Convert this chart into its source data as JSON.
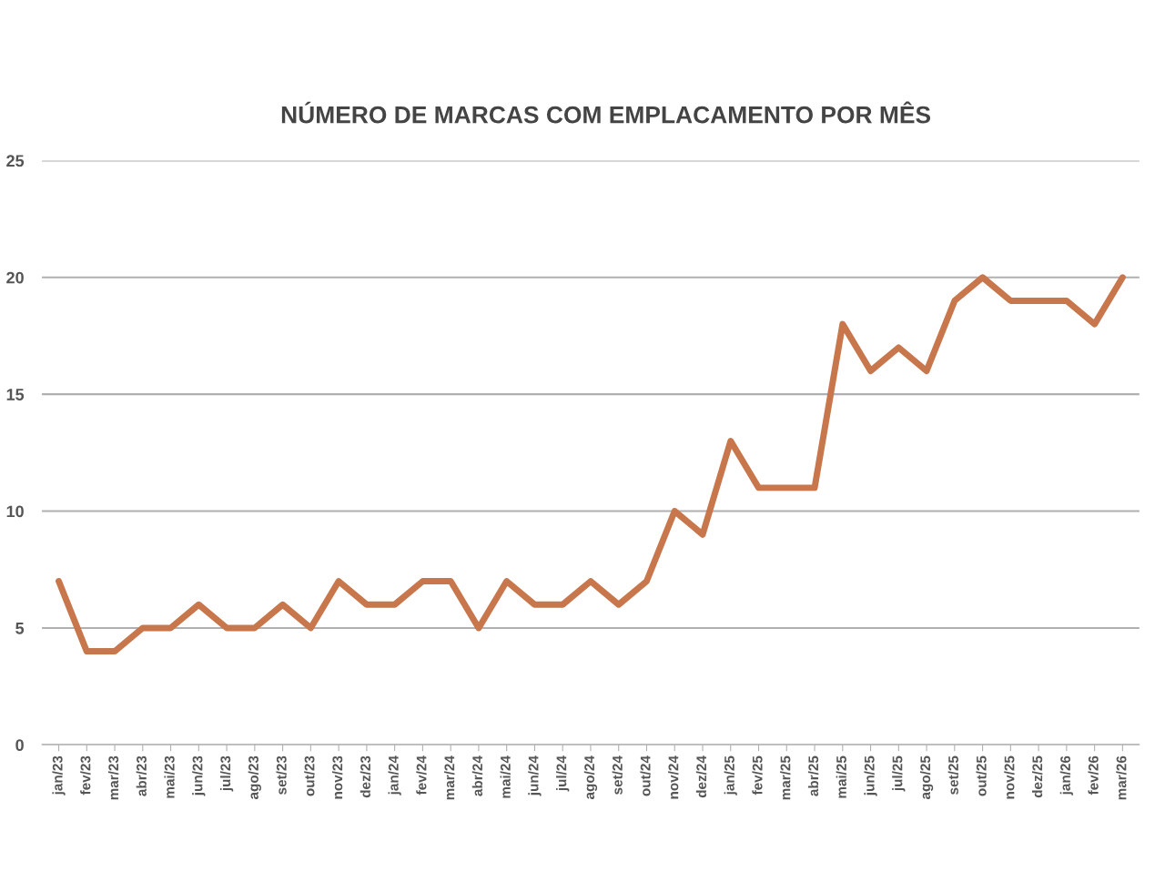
{
  "chart_data": {
    "type": "line",
    "title": "NÚMERO DE MARCAS COM EMPLACAMENTO POR MÊS",
    "categories": [
      "jan/23",
      "fev/23",
      "mar/23",
      "abr/23",
      "mai/23",
      "jun/23",
      "jul/23",
      "ago/23",
      "set/23",
      "out/23",
      "nov/23",
      "dez/23",
      "jan/24",
      "fev/24",
      "mar/24",
      "abr/24",
      "mai/24",
      "jun/24",
      "jul/24",
      "ago/24",
      "set/24",
      "out/24",
      "nov/24",
      "dez/24",
      "jan/25",
      "fev/25",
      "mar/25",
      "abr/25",
      "mai/25",
      "jun/25",
      "jul/25",
      "ago/25",
      "set/25",
      "out/25",
      "nov/25",
      "dez/25",
      "jan/26",
      "fev/26",
      "mar/26"
    ],
    "series": [
      {
        "color": "#c8764c",
        "values": [
          7,
          4,
          4,
          5,
          5,
          6,
          5,
          5,
          6,
          5,
          7,
          6,
          6,
          7,
          7,
          5,
          7,
          6,
          6,
          7,
          6,
          7,
          10,
          9,
          13,
          11,
          11,
          11,
          18,
          16,
          17,
          16,
          19,
          20,
          19,
          19,
          19,
          18,
          20
        ]
      }
    ],
    "ylim": [
      0,
      25
    ],
    "yticks": [
      0,
      5,
      10,
      15,
      20,
      25
    ],
    "grid": "y",
    "legend": false,
    "marker": "none",
    "line_style": "solid"
  }
}
